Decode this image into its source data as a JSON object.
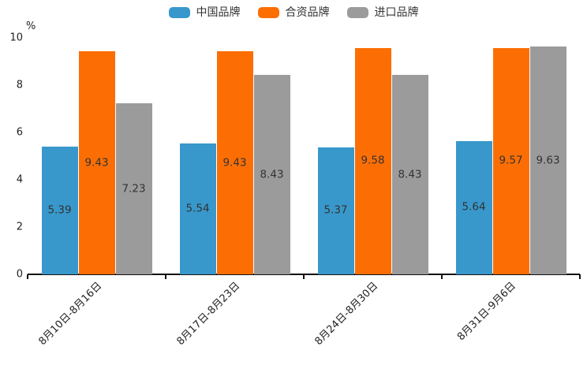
{
  "chart_data": {
    "type": "bar",
    "title": "",
    "categories": [
      "8月10日-8月16日",
      "8月17日-8月23日",
      "8月24日-8月30日",
      "8月31日-9月6日"
    ],
    "series": [
      {
        "name": "中国品牌",
        "color": "#3898CB",
        "values": [
          5.39,
          5.54,
          5.37,
          5.64
        ]
      },
      {
        "name": "合资品牌",
        "color": "#FC6E04",
        "values": [
          9.43,
          9.43,
          9.58,
          9.57
        ]
      },
      {
        "name": "进口品牌",
        "color": "#9B9B9B",
        "values": [
          7.23,
          8.43,
          8.43,
          9.63
        ]
      }
    ],
    "xlabel": "",
    "ylabel": "%",
    "ylim": [
      0,
      10
    ],
    "yticks": [
      0,
      2,
      4,
      6,
      8,
      10
    ],
    "grid": false,
    "legend_position": "top",
    "xtick_rotation": 45,
    "value_labels": "inside-center"
  },
  "colors": {
    "background": "#ffffff",
    "axis": "#111111",
    "tick_label": "#222222",
    "value_label": "#333333"
  }
}
